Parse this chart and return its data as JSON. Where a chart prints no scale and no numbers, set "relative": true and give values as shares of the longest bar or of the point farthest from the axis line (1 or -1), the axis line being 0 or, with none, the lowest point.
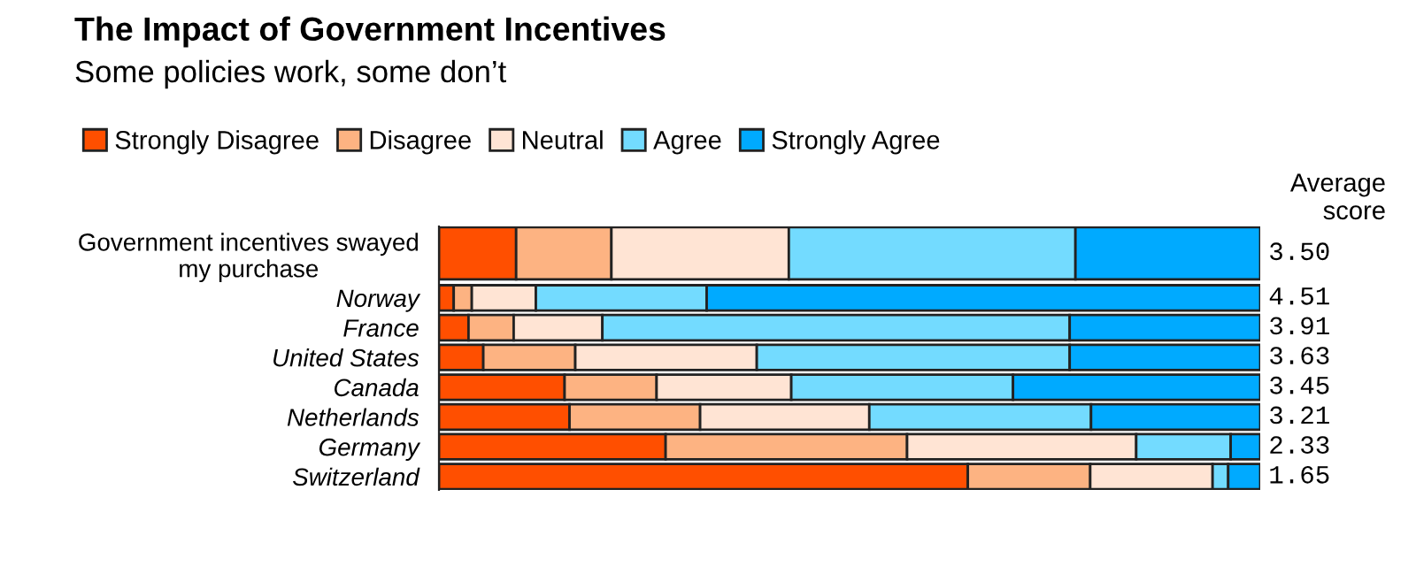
{
  "chart_data": {
    "type": "bar",
    "orientation": "horizontal",
    "stacked": true,
    "relative": true,
    "title": "The Impact of Government Incentives",
    "subtitle": "Some policies work, some don’t",
    "categories": [
      "Government incentives swayed\nmy purchase",
      "Norway",
      "France",
      "United States",
      "Canada",
      "Netherlands",
      "Germany",
      "Switzerland"
    ],
    "series": [
      {
        "name": "Strongly Disagree",
        "color": "#ff4f00",
        "values": [
          0.094,
          0.018,
          0.036,
          0.054,
          0.153,
          0.159,
          0.276,
          0.644
        ]
      },
      {
        "name": "Disagree",
        "color": "#fdb382",
        "values": [
          0.116,
          0.022,
          0.055,
          0.112,
          0.112,
          0.159,
          0.294,
          0.149
        ]
      },
      {
        "name": "Neutral",
        "color": "#ffe4d4",
        "values": [
          0.216,
          0.078,
          0.108,
          0.221,
          0.164,
          0.206,
          0.279,
          0.149
        ]
      },
      {
        "name": "Agree",
        "color": "#73dbff",
        "values": [
          0.349,
          0.208,
          0.569,
          0.381,
          0.27,
          0.27,
          0.115,
          0.019
        ]
      },
      {
        "name": "Strongly Agree",
        "color": "#00aaff",
        "values": [
          0.225,
          0.674,
          0.232,
          0.232,
          0.301,
          0.206,
          0.036,
          0.039
        ]
      }
    ],
    "annotations": [
      "Average\nscore",
      "3.50",
      "4.51",
      "3.91",
      "3.63",
      "3.45",
      "3.21",
      "2.33",
      "1.65"
    ],
    "legend": "top left"
  }
}
